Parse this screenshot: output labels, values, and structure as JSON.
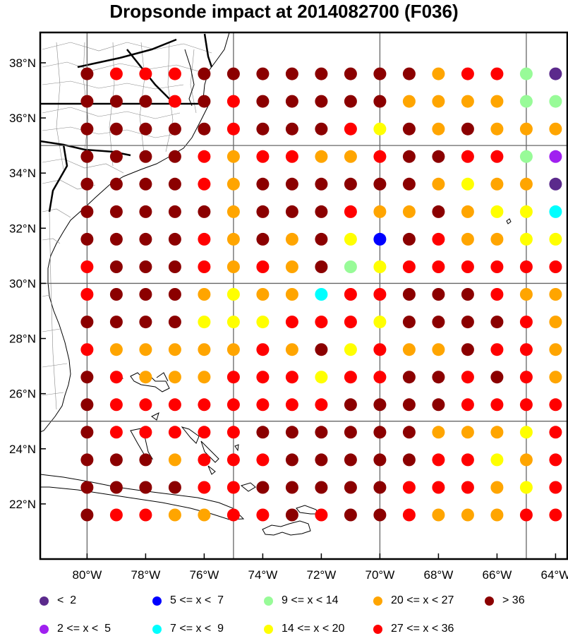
{
  "title": "Dropsonde impact at 2014082700 (F036)",
  "map": {
    "lon_range": [
      -81.6,
      -63.6
    ],
    "lat_range": [
      20.0,
      39.1
    ],
    "x_ticks": [
      -80,
      -78,
      -76,
      -74,
      -72,
      -70,
      -68,
      -66,
      -64
    ],
    "x_tick_labels": [
      "80°W",
      "78°W",
      "76°W",
      "74°W",
      "72°W",
      "70°W",
      "68°W",
      "66°W",
      "64°W"
    ],
    "y_ticks": [
      22,
      24,
      26,
      28,
      30,
      32,
      34,
      36,
      38
    ],
    "y_tick_labels": [
      "22°N",
      "24°N",
      "26°N",
      "28°N",
      "30°N",
      "32°N",
      "34°N",
      "36°N",
      "38°N"
    ],
    "grid_lon": [
      -80,
      -75,
      -70,
      -65
    ],
    "grid_lat": [
      25,
      30,
      35
    ],
    "grid": true,
    "land_outline_color": "#000000"
  },
  "legend": {
    "items": [
      {
        "key": "lt2",
        "label": "<  2",
        "color": "#5B2A8C"
      },
      {
        "key": "2to5",
        "label": "2 <= x <  5",
        "color": "#A020F0"
      },
      {
        "key": "5to7",
        "label": "5 <= x <  7",
        "color": "#0000FF"
      },
      {
        "key": "7to9",
        "label": "7 <= x <  9",
        "color": "#00FFFF"
      },
      {
        "key": "9to14",
        "label": "9 <= x < 14",
        "color": "#98FB98"
      },
      {
        "key": "14to20",
        "label": "14 <= x < 20",
        "color": "#FFFF00"
      },
      {
        "key": "20to27",
        "label": "20 <= x < 27",
        "color": "#FFA500"
      },
      {
        "key": "27to36",
        "label": "27 <= x < 36",
        "color": "#FF0000"
      },
      {
        "key": "gt36",
        "label": "> 36",
        "color": "#8B0000"
      }
    ]
  },
  "chart_data": {
    "type": "scatter",
    "title": "Dropsonde impact at 2014082700 (F036)",
    "x_unit": "degrees longitude",
    "y_unit": "degrees latitude",
    "xlim": [
      -81.6,
      -63.6
    ],
    "ylim": [
      20.0,
      39.1
    ],
    "lons": [
      -80,
      -79,
      -78,
      -77,
      -76,
      -75,
      -74,
      -73,
      -72,
      -71,
      -70,
      -69,
      -68,
      -67,
      -66,
      -65,
      -64
    ],
    "lats": [
      37.6,
      36.6,
      35.6,
      34.6,
      33.6,
      32.6,
      31.6,
      30.6,
      29.6,
      28.6,
      27.6,
      26.6,
      25.6,
      24.6,
      23.6,
      22.6,
      21.6
    ],
    "category_codes": {
      "P": "lt2",
      "V": "2to5",
      "B": "5to7",
      "C": "7to9",
      "G": "9to14",
      "Y": "14to20",
      "O": "20to27",
      "R": "27to36",
      "D": "gt36"
    },
    "rows": [
      "DRRRDDDDDDDDORRGP",
      "DDDRDRDDDDDOOOOGG",
      "DDDDDRDDDRYDODOOO",
      "DDDDRORROORDDRRGV",
      "DDDDRODDDDDDOYOOP",
      "DDDDDODDDROODOYYC",
      "DDDDRODODYBDROOYY",
      "RDDDRORODGYRRRRRR",
      "RDDDOYOOCRRDDDROO",
      "DDDDYYYRRRYDDDDRO",
      "ROOOOORODYROODRRO",
      "DROOORRRYRRDDRDRO",
      "DRRRRRRRRDDDDRRRR",
      "DRRRRRDDDDDDOOOYR",
      "DDDORRRDDDDDRRYOR",
      "DDDDRRDDDDDRRROYR",
      "DRROORRDRDDROOORR"
    ]
  }
}
